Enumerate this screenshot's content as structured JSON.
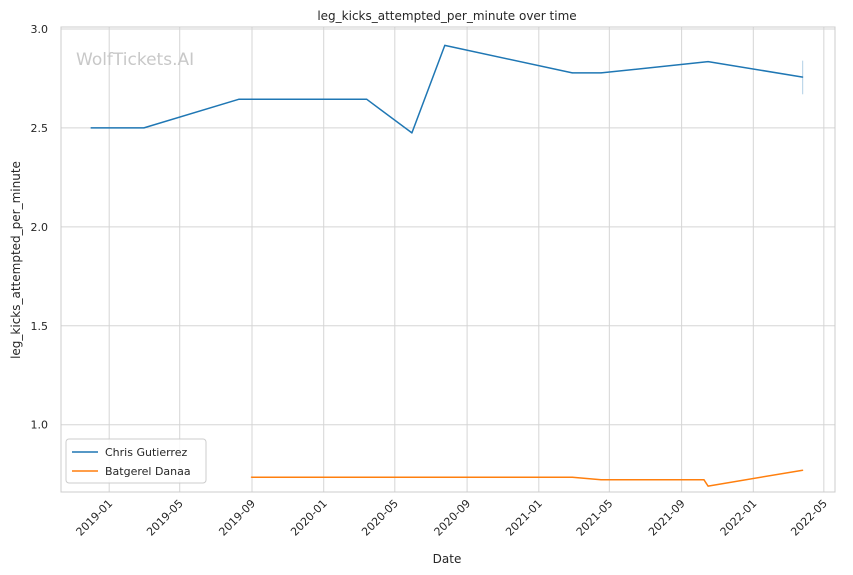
{
  "chart_data": {
    "type": "line",
    "title": "leg_kicks_attempted_per_minute over time",
    "xlabel": "Date",
    "ylabel": "leg_kicks_attempted_per_minute",
    "watermark": "WolfTickets.AI",
    "x_ticks": [
      "2019-01",
      "2019-05",
      "2019-09",
      "2020-01",
      "2020-05",
      "2020-09",
      "2021-01",
      "2021-05",
      "2021-09",
      "2022-01",
      "2022-05"
    ],
    "y_ticks": [
      "1.0",
      "1.5",
      "2.0",
      "2.5",
      "3.0"
    ],
    "xlim": [
      "2018-10-11",
      "2022-05-20"
    ],
    "ylim": [
      0.66,
      3.01
    ],
    "grid": true,
    "legend_position": "bottom-left",
    "series": [
      {
        "name": "Chris Gutierrez",
        "color": "#1f77b4",
        "points": [
          {
            "x": "2018-12-01",
            "y": 2.5
          },
          {
            "x": "2019-03-01",
            "y": 2.5
          },
          {
            "x": "2019-08-10",
            "y": 2.645
          },
          {
            "x": "2020-03-14",
            "y": 2.645
          },
          {
            "x": "2020-05-30",
            "y": 2.475
          },
          {
            "x": "2020-07-25",
            "y": 2.917
          },
          {
            "x": "2021-02-27",
            "y": 2.778
          },
          {
            "x": "2021-04-17",
            "y": 2.778
          },
          {
            "x": "2021-10-16",
            "y": 2.835
          },
          {
            "x": "2022-03-26",
            "y": 2.757
          }
        ],
        "error_bar": {
          "x": "2022-03-26",
          "low": 2.67,
          "high": 2.84
        }
      },
      {
        "name": "Batgerel Danaa",
        "color": "#ff7f0e",
        "points": [
          {
            "x": "2019-08-31",
            "y": 0.735
          },
          {
            "x": "2021-02-27",
            "y": 0.735
          },
          {
            "x": "2021-04-17",
            "y": 0.722
          },
          {
            "x": "2021-10-09",
            "y": 0.722
          },
          {
            "x": "2021-10-16",
            "y": 0.69
          },
          {
            "x": "2022-03-26",
            "y": 0.77
          }
        ]
      }
    ]
  }
}
